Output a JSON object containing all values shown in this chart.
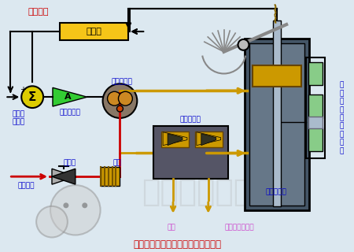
{
  "bg_color": "#dce8f0",
  "title": "高压主汽阀和调节汽阀的工作原理图",
  "title_color": "#cc0000",
  "title_fontsize": 9,
  "manual_text": "手动卸载",
  "manual_color": "#cc0000",
  "labels": {
    "jieyuqi": "解耦器",
    "dianyanzhuanhuanqi": "电液转换器",
    "fufu_fangdaqi": "伺服放大器",
    "kongzhiqi": "控制器\n来信号",
    "geju_fa": "隔绝阀",
    "luwang": "滤网",
    "gaoya_gongyou": "高压供油",
    "kuaisu_xiezai": "快速卸载阀",
    "danyi_youdongji": "单侧油动机",
    "xuxing_weiyicha": "线\n性\n位\n移\n差\n动\n变\n送\n器",
    "huiyou": "回油",
    "zhufa_weiji_duanduan": "主汽阀危急遮断"
  },
  "colors": {
    "yellow_box": "#f5c518",
    "green_triangle": "#33cc33",
    "sigma_circle": "#ddcc00",
    "red_line": "#cc0000",
    "blue_text": "#0000cc",
    "pink_text": "#cc44cc",
    "gold": "#cc9900",
    "dark_box": "#555566",
    "steel_dark": "#445566",
    "steel_mid": "#667788",
    "steel_light": "#aabbcc",
    "orange_line": "#ff8800",
    "green_cell": "#88cc88"
  }
}
